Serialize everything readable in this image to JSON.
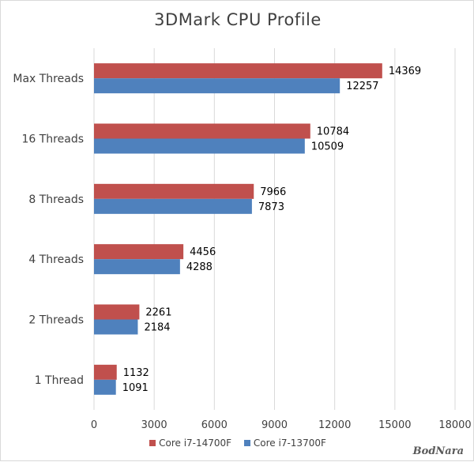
{
  "chart_data": {
    "type": "bar",
    "orientation": "horizontal",
    "title": "3DMark CPU Profile",
    "categories": [
      "Max Threads",
      "16 Threads",
      "8 Threads",
      "4 Threads",
      "2 Threads",
      "1 Thread"
    ],
    "series": [
      {
        "name": "Core i7-14700F",
        "color": "#c0504d",
        "values": [
          14369,
          10784,
          7966,
          4456,
          2261,
          1132
        ]
      },
      {
        "name": "Core i7-13700F",
        "color": "#4f81bd",
        "values": [
          12257,
          10509,
          7873,
          4288,
          2184,
          1091
        ]
      }
    ],
    "xticks": [
      "0",
      "3000",
      "6000",
      "9000",
      "12000",
      "15000",
      "18000"
    ],
    "xlim": [
      0,
      18000
    ],
    "grid": true,
    "legend_position": "bottom"
  },
  "watermark": "BodNara"
}
